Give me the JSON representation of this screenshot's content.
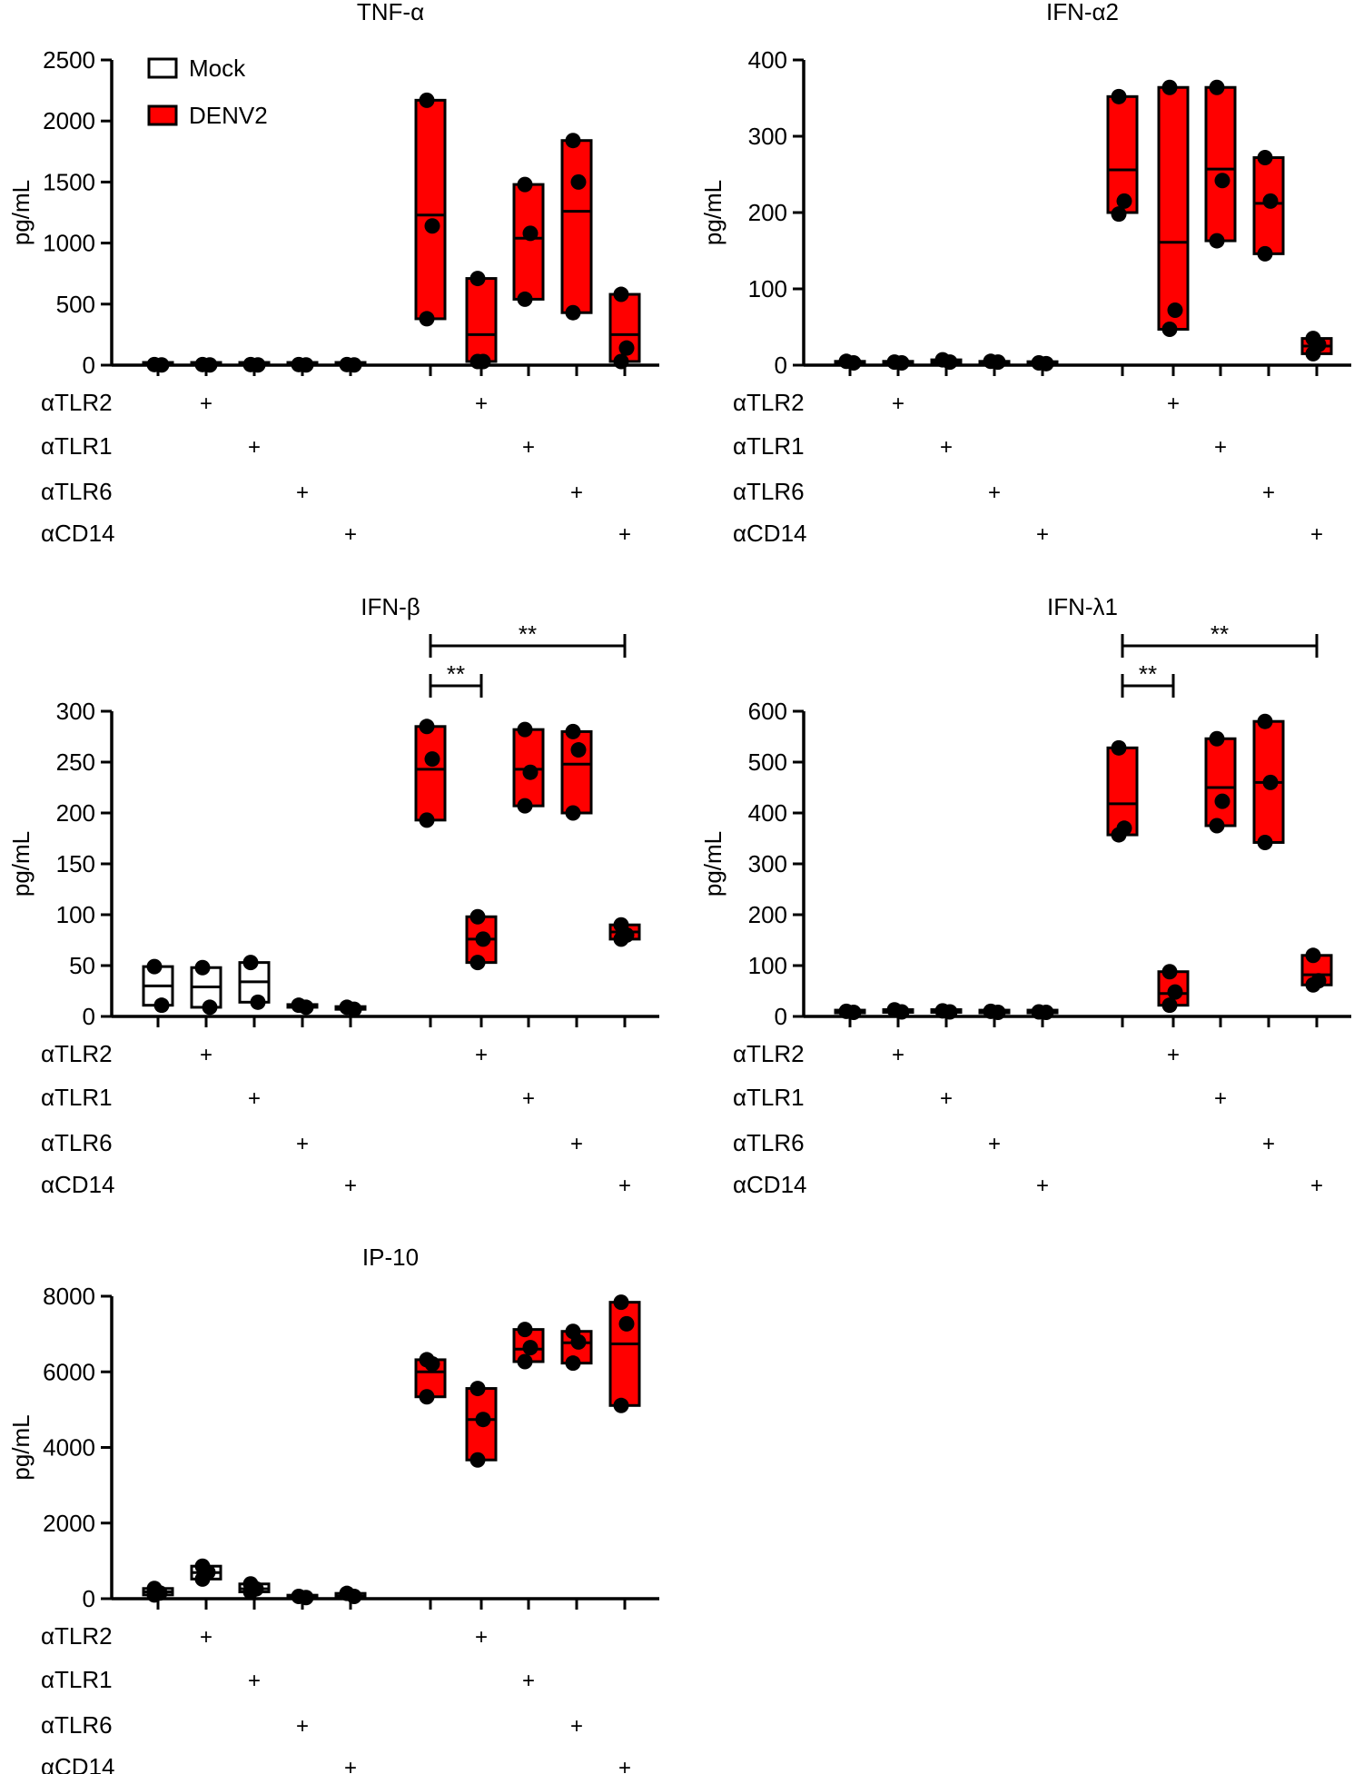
{
  "figure": {
    "legend": {
      "entries": [
        {
          "label": "Mock",
          "fill": "#ffffff"
        },
        {
          "label": "DENV2",
          "fill": "#ff0000"
        }
      ]
    },
    "ylabel": "pg/mL",
    "treatment_rows": [
      "αTLR2",
      "αTLR1",
      "αTLR6",
      "αCD14"
    ],
    "treatment_marker": "+",
    "colors": {
      "mock": "#ffffff",
      "denv2": "#ff0000",
      "stroke": "#000000",
      "point": "#000000"
    }
  },
  "chart_data": [
    {
      "type": "box",
      "title": "TNF-α",
      "ylabel": "pg/mL",
      "ylim": [
        0,
        2500
      ],
      "yticks": [
        0,
        500,
        1000,
        1500,
        2000,
        2500
      ],
      "groups": [
        {
          "condition": "Mock",
          "treatment": "",
          "points": [
            5,
            2
          ],
          "min": 0,
          "median": 3,
          "max": 5
        },
        {
          "condition": "Mock",
          "treatment": "αTLR2",
          "points": [
            5,
            2
          ],
          "min": 0,
          "median": 3,
          "max": 5
        },
        {
          "condition": "Mock",
          "treatment": "αTLR1",
          "points": [
            5,
            2
          ],
          "min": 0,
          "median": 3,
          "max": 5
        },
        {
          "condition": "Mock",
          "treatment": "αTLR6",
          "points": [
            5,
            2
          ],
          "min": 0,
          "median": 3,
          "max": 5
        },
        {
          "condition": "Mock",
          "treatment": "αCD14",
          "points": [
            5,
            2
          ],
          "min": 0,
          "median": 3,
          "max": 5
        },
        {
          "condition": "DENV2",
          "treatment": "",
          "points": [
            2170,
            1140,
            380
          ],
          "min": 380,
          "median": 1230,
          "max": 2170
        },
        {
          "condition": "DENV2",
          "treatment": "αTLR2",
          "points": [
            710,
            30,
            30
          ],
          "min": 30,
          "median": 250,
          "max": 710
        },
        {
          "condition": "DENV2",
          "treatment": "αTLR1",
          "points": [
            1480,
            1080,
            540
          ],
          "min": 540,
          "median": 1040,
          "max": 1480
        },
        {
          "condition": "DENV2",
          "treatment": "αTLR6",
          "points": [
            1840,
            1500,
            430
          ],
          "min": 430,
          "median": 1260,
          "max": 1840
        },
        {
          "condition": "DENV2",
          "treatment": "αCD14",
          "points": [
            580,
            140,
            30
          ],
          "min": 30,
          "median": 250,
          "max": 580
        }
      ]
    },
    {
      "type": "box",
      "title": "IFN-α2",
      "ylabel": "pg/mL",
      "ylim": [
        0,
        400
      ],
      "yticks": [
        0,
        100,
        200,
        300,
        400
      ],
      "groups": [
        {
          "condition": "Mock",
          "treatment": "",
          "points": [
            5,
            3
          ],
          "min": 1,
          "median": 3,
          "max": 5
        },
        {
          "condition": "Mock",
          "treatment": "αTLR2",
          "points": [
            4,
            3
          ],
          "min": 1,
          "median": 3,
          "max": 5
        },
        {
          "condition": "Mock",
          "treatment": "αTLR1",
          "points": [
            7,
            4
          ],
          "min": 1,
          "median": 4,
          "max": 7
        },
        {
          "condition": "Mock",
          "treatment": "αTLR6",
          "points": [
            5,
            4
          ],
          "min": 1,
          "median": 3,
          "max": 5
        },
        {
          "condition": "Mock",
          "treatment": "αCD14",
          "points": [
            3,
            2
          ],
          "min": 1,
          "median": 2,
          "max": 3
        },
        {
          "condition": "DENV2",
          "treatment": "",
          "points": [
            352,
            215,
            198
          ],
          "min": 200,
          "median": 256,
          "max": 352
        },
        {
          "condition": "DENV2",
          "treatment": "αTLR2",
          "points": [
            364,
            72,
            47
          ],
          "min": 47,
          "median": 161,
          "max": 364
        },
        {
          "condition": "DENV2",
          "treatment": "αTLR1",
          "points": [
            364,
            242,
            163
          ],
          "min": 163,
          "median": 257,
          "max": 364
        },
        {
          "condition": "DENV2",
          "treatment": "αTLR6",
          "points": [
            272,
            215,
            146
          ],
          "min": 146,
          "median": 212,
          "max": 272
        },
        {
          "condition": "DENV2",
          "treatment": "αCD14",
          "points": [
            35,
            27,
            15
          ],
          "min": 15,
          "median": 25,
          "max": 35
        }
      ]
    },
    {
      "type": "box",
      "title": "IFN-β",
      "ylabel": "pg/mL",
      "ylim": [
        0,
        300
      ],
      "yticks": [
        0,
        50,
        100,
        150,
        200,
        250,
        300
      ],
      "significance": [
        {
          "from": 5,
          "to": 6,
          "label": "**"
        },
        {
          "from": 5,
          "to": 9,
          "label": "**"
        }
      ],
      "groups": [
        {
          "condition": "Mock",
          "treatment": "",
          "points": [
            49,
            11
          ],
          "min": 11,
          "median": 30,
          "max": 49
        },
        {
          "condition": "Mock",
          "treatment": "αTLR2",
          "points": [
            48,
            9
          ],
          "min": 9,
          "median": 29,
          "max": 48
        },
        {
          "condition": "Mock",
          "treatment": "αTLR1",
          "points": [
            53,
            14
          ],
          "min": 14,
          "median": 34,
          "max": 53
        },
        {
          "condition": "Mock",
          "treatment": "αTLR6",
          "points": [
            11,
            9
          ],
          "min": 9,
          "median": 10,
          "max": 11
        },
        {
          "condition": "Mock",
          "treatment": "αCD14",
          "points": [
            9,
            7
          ],
          "min": 7,
          "median": 8,
          "max": 9
        }
      ],
      "groups_denv2": [
        {
          "condition": "DENV2",
          "treatment": "",
          "points": [
            285,
            253,
            193
          ],
          "min": 193,
          "median": 243,
          "max": 285
        },
        {
          "condition": "DENV2",
          "treatment": "αTLR2",
          "points": [
            98,
            76,
            53
          ],
          "min": 53,
          "median": 76,
          "max": 98
        },
        {
          "condition": "DENV2",
          "treatment": "αTLR1",
          "points": [
            282,
            240,
            207
          ],
          "min": 207,
          "median": 243,
          "max": 282
        },
        {
          "condition": "DENV2",
          "treatment": "αTLR6",
          "points": [
            280,
            262,
            200
          ],
          "min": 200,
          "median": 248,
          "max": 280
        },
        {
          "condition": "DENV2",
          "treatment": "αCD14",
          "points": [
            90,
            80,
            76
          ],
          "min": 76,
          "median": 83,
          "max": 90
        }
      ]
    },
    {
      "type": "box",
      "title": "IFN-λ1",
      "ylabel": "pg/mL",
      "ylim": [
        0,
        600
      ],
      "yticks": [
        0,
        100,
        200,
        300,
        400,
        500,
        600
      ],
      "significance": [
        {
          "from": 5,
          "to": 6,
          "label": "**"
        },
        {
          "from": 5,
          "to": 9,
          "label": "**"
        }
      ],
      "groups": [
        {
          "condition": "Mock",
          "treatment": "",
          "points": [
            10,
            8
          ],
          "min": 7,
          "median": 9,
          "max": 10
        },
        {
          "condition": "Mock",
          "treatment": "αTLR2",
          "points": [
            13,
            9
          ],
          "min": 8,
          "median": 10,
          "max": 13
        },
        {
          "condition": "Mock",
          "treatment": "αTLR1",
          "points": [
            11,
            9
          ],
          "min": 8,
          "median": 10,
          "max": 11
        },
        {
          "condition": "Mock",
          "treatment": "αTLR6",
          "points": [
            10,
            8
          ],
          "min": 7,
          "median": 9,
          "max": 10
        },
        {
          "condition": "Mock",
          "treatment": "αCD14",
          "points": [
            9,
            8
          ],
          "min": 7,
          "median": 8,
          "max": 9
        }
      ],
      "groups_denv2": [
        {
          "condition": "DENV2",
          "treatment": "",
          "points": [
            528,
            370,
            357
          ],
          "min": 357,
          "median": 418,
          "max": 528
        },
        {
          "condition": "DENV2",
          "treatment": "αTLR2",
          "points": [
            88,
            48,
            22
          ],
          "min": 22,
          "median": 45,
          "max": 88
        },
        {
          "condition": "DENV2",
          "treatment": "αTLR1",
          "points": [
            546,
            423,
            375
          ],
          "min": 375,
          "median": 450,
          "max": 546
        },
        {
          "condition": "DENV2",
          "treatment": "αTLR6",
          "points": [
            580,
            460,
            342
          ],
          "min": 342,
          "median": 460,
          "max": 580
        },
        {
          "condition": "DENV2",
          "treatment": "αCD14",
          "points": [
            120,
            70,
            62
          ],
          "min": 62,
          "median": 82,
          "max": 120
        }
      ]
    },
    {
      "type": "box",
      "title": "IP-10",
      "ylabel": "pg/mL",
      "ylim": [
        0,
        8000
      ],
      "yticks": [
        0,
        2000,
        4000,
        6000,
        8000
      ],
      "groups": [
        {
          "condition": "Mock",
          "treatment": "",
          "points": [
            270,
            150,
            100
          ],
          "min": 100,
          "median": 180,
          "max": 270
        },
        {
          "condition": "Mock",
          "treatment": "αTLR2",
          "points": [
            860,
            700,
            520
          ],
          "min": 520,
          "median": 690,
          "max": 860
        },
        {
          "condition": "Mock",
          "treatment": "αTLR1",
          "points": [
            390,
            260,
            180
          ],
          "min": 180,
          "median": 260,
          "max": 390
        },
        {
          "condition": "Mock",
          "treatment": "αTLR6",
          "points": [
            60,
            30
          ],
          "min": 20,
          "median": 40,
          "max": 60
        },
        {
          "condition": "Mock",
          "treatment": "αCD14",
          "points": [
            140,
            60
          ],
          "min": 30,
          "median": 70,
          "max": 140
        }
      ],
      "groups_denv2": [
        {
          "condition": "DENV2",
          "treatment": "",
          "points": [
            6320,
            6210,
            5340
          ],
          "min": 5340,
          "median": 6000,
          "max": 6320
        },
        {
          "condition": "DENV2",
          "treatment": "αTLR2",
          "points": [
            5560,
            4740,
            3670
          ],
          "min": 3670,
          "median": 4740,
          "max": 5560
        },
        {
          "condition": "DENV2",
          "treatment": "αTLR1",
          "points": [
            7120,
            6640,
            6270
          ],
          "min": 6270,
          "median": 6600,
          "max": 7120
        },
        {
          "condition": "DENV2",
          "treatment": "αTLR6",
          "points": [
            7070,
            6790,
            6230
          ],
          "min": 6230,
          "median": 6770,
          "max": 7070
        },
        {
          "condition": "DENV2",
          "treatment": "αCD14",
          "points": [
            7840,
            7270,
            5110
          ],
          "min": 5110,
          "median": 6740,
          "max": 7840
        }
      ]
    }
  ]
}
